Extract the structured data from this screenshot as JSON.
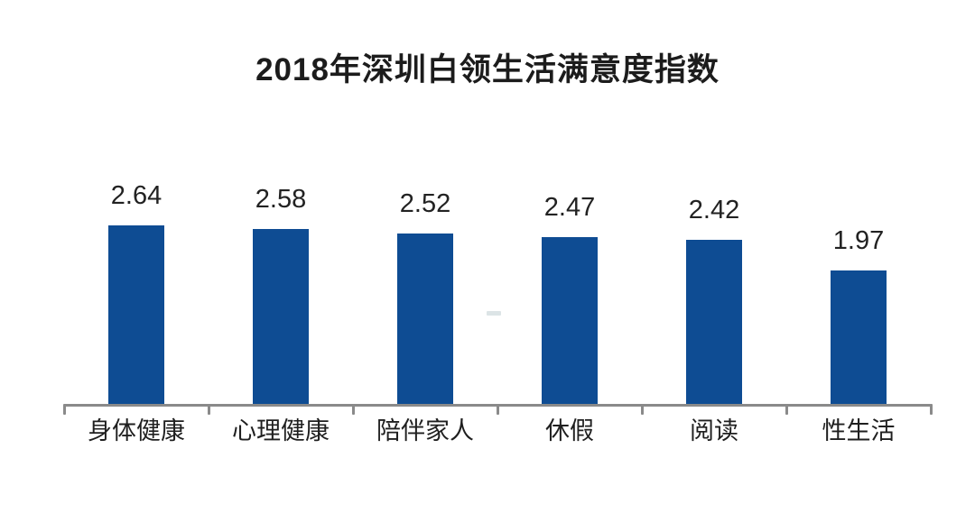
{
  "chart_data": {
    "type": "bar",
    "title": "2018年深圳白领生活满意度指数",
    "categories": [
      "身体健康",
      "心理健康",
      "陪伴家人",
      "休假",
      "阅读",
      "性生活"
    ],
    "values": [
      2.64,
      2.58,
      2.52,
      2.47,
      2.42,
      1.97
    ],
    "value_label_format": "2-decimals",
    "xlabel": "",
    "ylabel": "",
    "ylim": [
      0,
      2.8
    ],
    "grid": false,
    "legend": "none",
    "value_labels_shown": true,
    "colors": {
      "bar": "#0e4c93",
      "axis": "#8a8a8a",
      "title_text": "#1c1c1c",
      "value_text": "#222222",
      "category_text": "#1f1f1f",
      "background": "#ffffff"
    }
  }
}
